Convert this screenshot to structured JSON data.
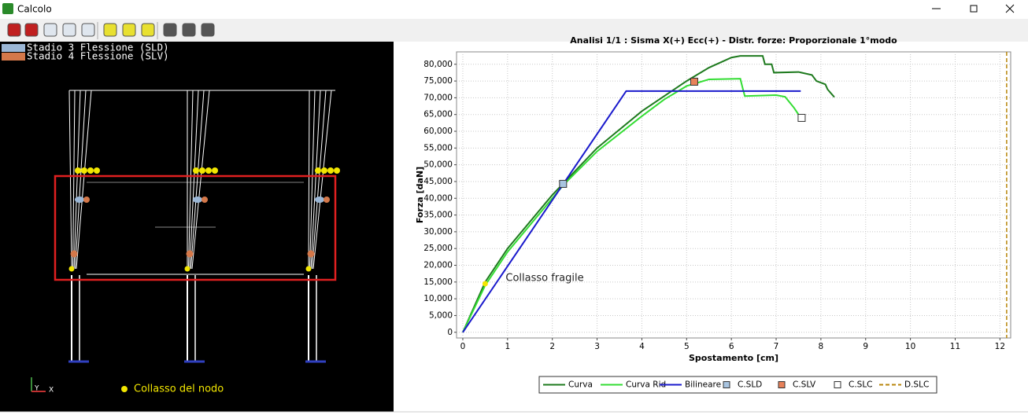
{
  "window": {
    "title": "Calcolo"
  },
  "structure_view": {
    "legend": [
      {
        "name": "Stadio 3 Flessione (SLD)",
        "color": "#9bb7d6"
      },
      {
        "name": "Stadio 4 Flessione (SLV)",
        "color": "#d4784a"
      }
    ],
    "note": "Collasso del nodo",
    "axes": [
      "Y",
      "X"
    ]
  },
  "chart_data": {
    "type": "line",
    "title": "Analisi 1/1 : Sisma X(+) Ecc(+) - Distr. forze: Proporzionale 1°modo",
    "x_label": "Spostamento [cm]",
    "y_label": "Forza [daN]",
    "xlim": [
      -0.14,
      12.24
    ],
    "ylim": [
      -1700,
      83700
    ],
    "xticks": [
      0,
      1,
      2,
      3,
      4,
      5,
      6,
      7,
      8,
      9,
      10,
      11,
      12
    ],
    "yticks": [
      0,
      {
        "value": 5000,
        "label": "5,000"
      },
      {
        "value": 10000,
        "label": "10,000"
      },
      {
        "value": 15000,
        "label": "15,000"
      },
      {
        "value": 20000,
        "label": "20,000"
      },
      {
        "value": 25000,
        "label": "25,000"
      },
      {
        "value": 30000,
        "label": "30,000"
      },
      {
        "value": 35000,
        "label": "35,000"
      },
      {
        "value": 40000,
        "label": "40,000"
      },
      {
        "value": 45000,
        "label": "45,000"
      },
      {
        "value": 50000,
        "label": "50,000"
      },
      {
        "value": 55000,
        "label": "55,000"
      },
      {
        "value": 60000,
        "label": "60,000"
      },
      {
        "value": 65000,
        "label": "65,000"
      },
      {
        "value": 70000,
        "label": "70,000"
      },
      {
        "value": 75000,
        "label": "75,000"
      },
      {
        "value": 80000,
        "label": "80,000"
      }
    ],
    "grid": true,
    "series": [
      {
        "name": "Curva",
        "kind": "line",
        "color": "#1e7a1e",
        "x": [
          0,
          0.5,
          1,
          2,
          2.25,
          3,
          4,
          5,
          5.5,
          6,
          6.2,
          6.7,
          6.75,
          6.9,
          6.95,
          7.5,
          7.8,
          7.9,
          8.1,
          8.15,
          8.3
        ],
        "values": [
          0,
          15000,
          25000,
          41000,
          44500,
          55000,
          66000,
          75000,
          79000,
          82000,
          82500,
          82500,
          80000,
          80000,
          77500,
          77700,
          76800,
          75000,
          74000,
          72500,
          70200
        ]
      },
      {
        "name": "Curva Rid",
        "kind": "line",
        "color": "#33dd33",
        "x": [
          0,
          0.5,
          1,
          2,
          2.25,
          3,
          4,
          4.5,
          5,
          5.5,
          6.2,
          6.25,
          6.3,
          7,
          7.2,
          7.4,
          7.5
        ],
        "values": [
          0,
          14000,
          24000,
          40000,
          44000,
          54000,
          64500,
          69500,
          73500,
          75500,
          75700,
          73000,
          70500,
          70800,
          70300,
          67000,
          65000
        ]
      },
      {
        "name": "Bilineare",
        "kind": "line",
        "color": "#1a1acc",
        "x": [
          0,
          3.65,
          7.55
        ],
        "values": [
          0,
          72000,
          72000
        ]
      },
      {
        "name": "C.SLD",
        "kind": "marker",
        "color": "#a8c4e0",
        "x": [
          2.24
        ],
        "values": [
          44300
        ]
      },
      {
        "name": "C.SLV",
        "kind": "marker",
        "color": "#e8825a",
        "x": [
          5.17
        ],
        "values": [
          74800
        ]
      },
      {
        "name": "C.SLC",
        "kind": "marker",
        "color": "#ffffff",
        "x": [
          7.57
        ],
        "values": [
          64000
        ]
      },
      {
        "name": "D.SLC",
        "kind": "vline",
        "color": "#b8860b",
        "x": [
          12.15
        ]
      }
    ],
    "annotations": [
      {
        "text": "Collasso fragile",
        "x": 0.5,
        "y": 14500,
        "color": "#f2e600"
      }
    ]
  }
}
